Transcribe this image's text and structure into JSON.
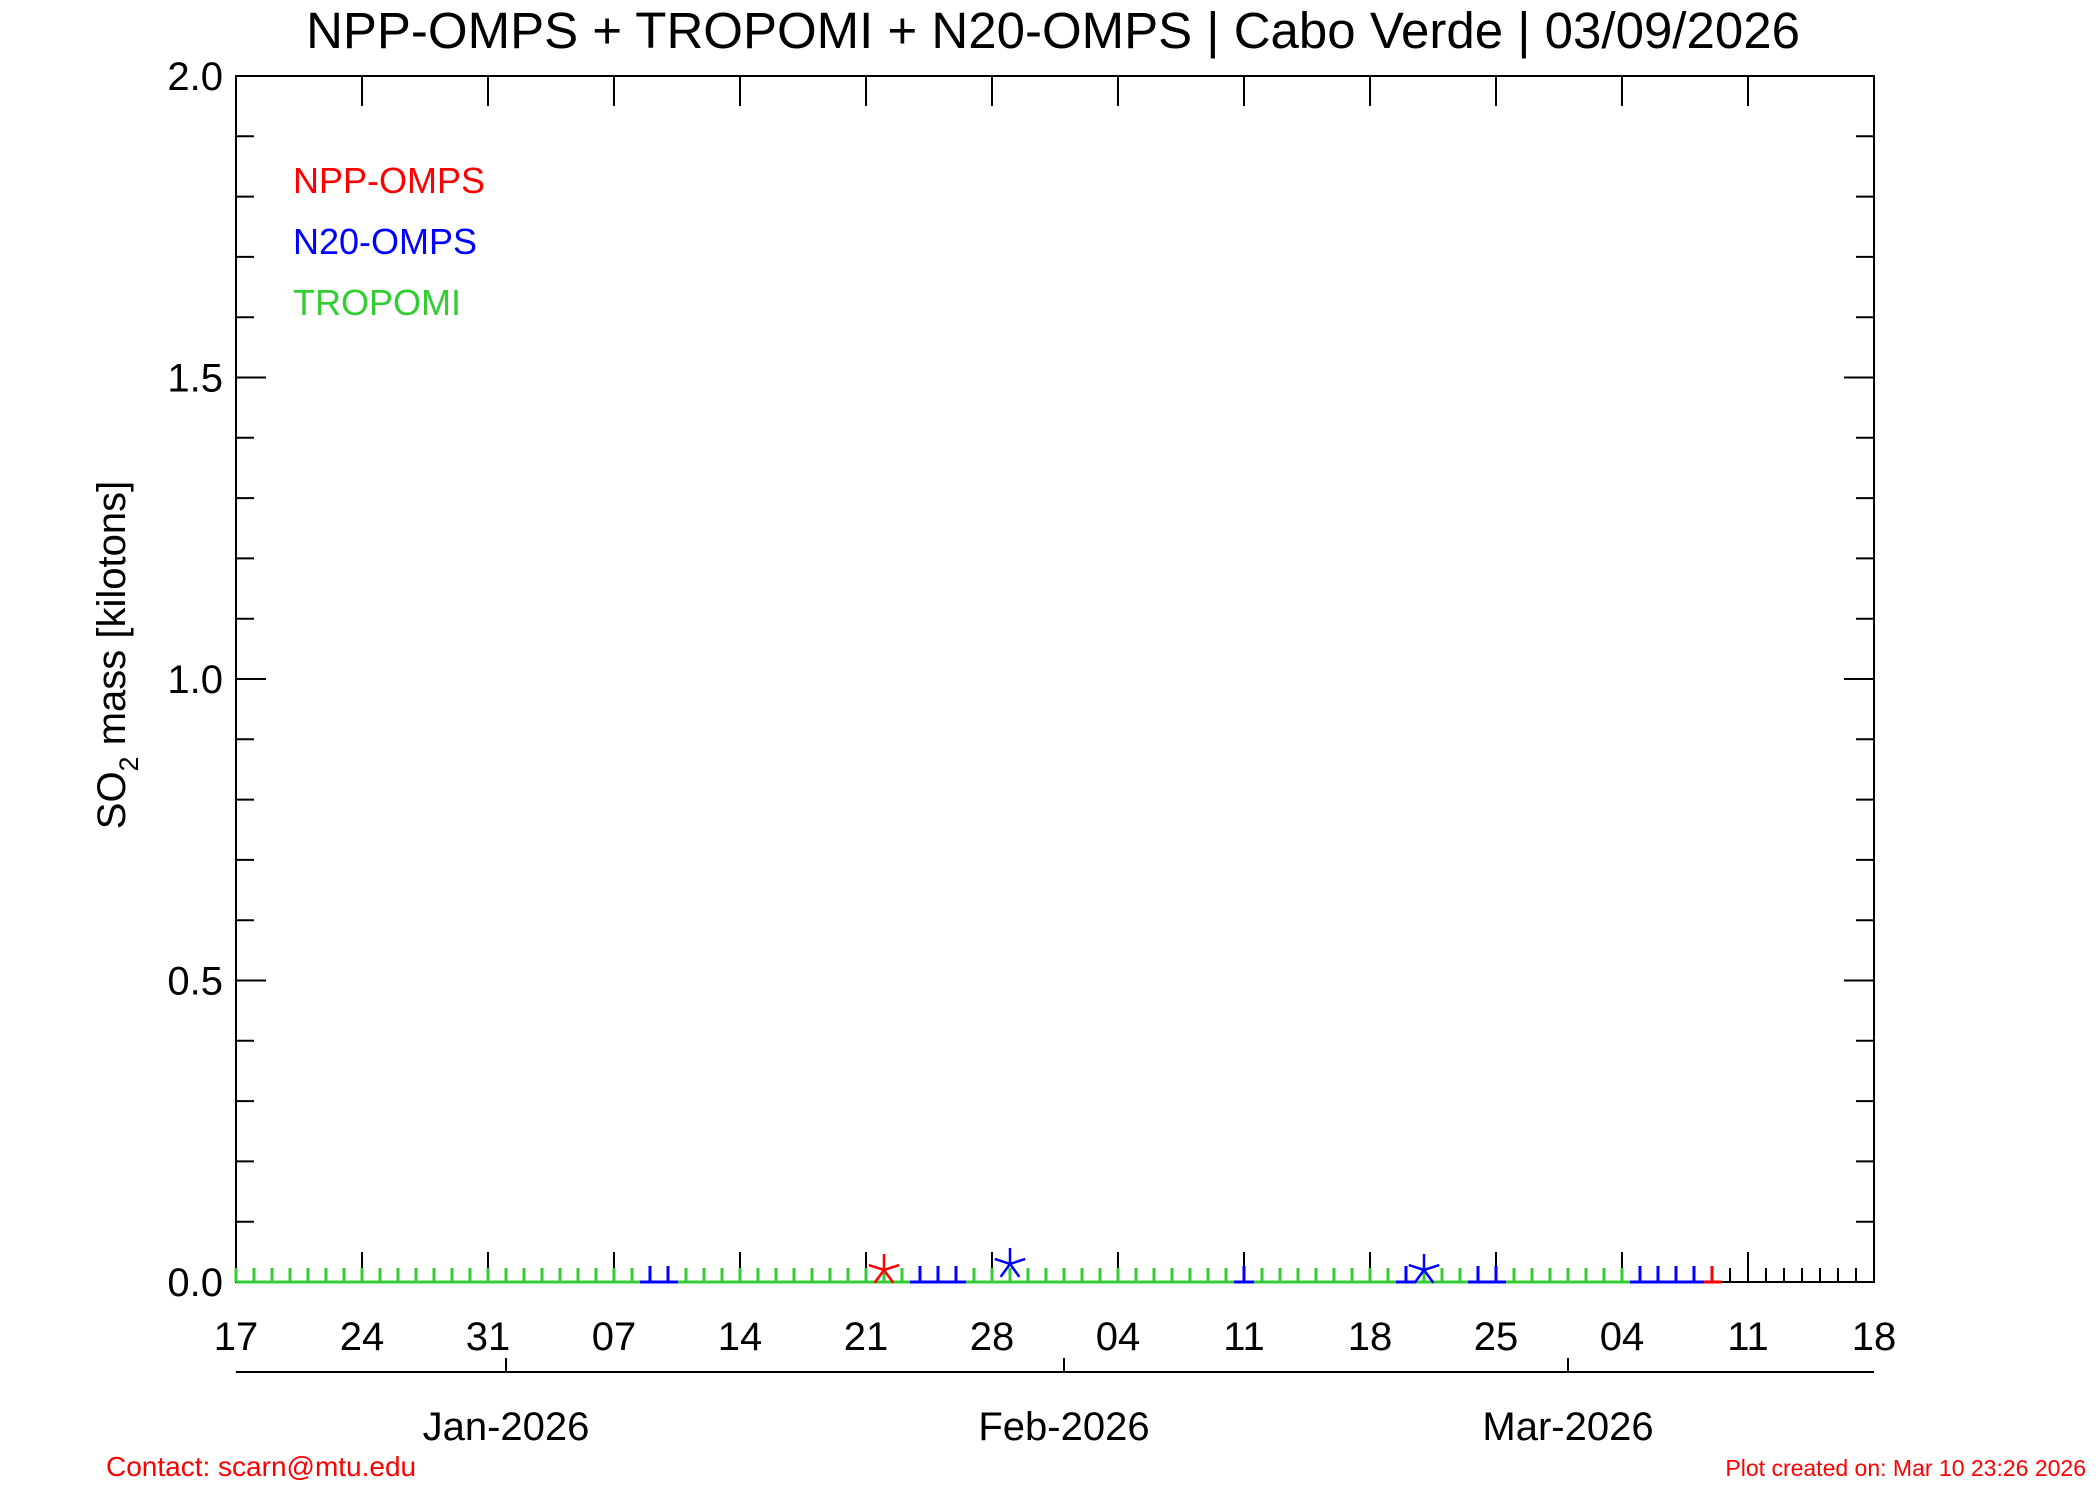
{
  "chart_data": {
    "type": "scatter",
    "title": "NPP-OMPS + TROPOMI + N20-OMPS | Cabo Verde | 03/09/2026",
    "ylabel_main": "SO",
    "ylabel_sub": "2",
    "ylabel_rest": " mass [kilotons]",
    "ylim": [
      0,
      2.0
    ],
    "y_ticks": [
      {
        "value": 0.0,
        "label": "0.0"
      },
      {
        "value": 0.5,
        "label": "0.5"
      },
      {
        "value": 1.0,
        "label": "1.0"
      },
      {
        "value": 1.5,
        "label": "1.5"
      },
      {
        "value": 2.0,
        "label": "2.0"
      }
    ],
    "xlim": [
      "2025-12-17",
      "2026-03-18"
    ],
    "x_ticks": [
      {
        "date": "2025-12-17",
        "label": "17"
      },
      {
        "date": "2025-12-24",
        "label": "24"
      },
      {
        "date": "2025-12-31",
        "label": "31"
      },
      {
        "date": "2026-01-07",
        "label": "07"
      },
      {
        "date": "2026-01-14",
        "label": "14"
      },
      {
        "date": "2026-01-21",
        "label": "21"
      },
      {
        "date": "2026-01-28",
        "label": "28"
      },
      {
        "date": "2026-02-04",
        "label": "04"
      },
      {
        "date": "2026-02-11",
        "label": "11"
      },
      {
        "date": "2026-02-18",
        "label": "18"
      },
      {
        "date": "2026-02-25",
        "label": "25"
      },
      {
        "date": "2026-03-04",
        "label": "04"
      },
      {
        "date": "2026-03-11",
        "label": "11"
      },
      {
        "date": "2026-03-18",
        "label": "18"
      }
    ],
    "month_axis": [
      {
        "date": "2026-01-01",
        "label": "Jan-2026"
      },
      {
        "date": "2026-02-01",
        "label": "Feb-2026"
      },
      {
        "date": "2026-03-01",
        "label": "Mar-2026"
      }
    ],
    "legend_position": "top-left",
    "series": [
      {
        "name": "NPP-OMPS",
        "color": "#ff0000",
        "points": [
          {
            "date": "2026-01-22",
            "value": 0.01
          },
          {
            "date": "2026-03-09",
            "value": 0.0
          }
        ]
      },
      {
        "name": "N20-OMPS",
        "color": "#0000ff",
        "points": [
          {
            "date": "2026-01-09",
            "value": 0.0
          },
          {
            "date": "2026-01-10",
            "value": 0.0
          },
          {
            "date": "2026-01-24",
            "value": 0.0
          },
          {
            "date": "2026-01-25",
            "value": 0.0
          },
          {
            "date": "2026-01-26",
            "value": 0.0
          },
          {
            "date": "2026-01-29",
            "value": 0.02
          },
          {
            "date": "2026-02-11",
            "value": 0.0
          },
          {
            "date": "2026-02-20",
            "value": 0.0
          },
          {
            "date": "2026-02-21",
            "value": 0.01
          },
          {
            "date": "2026-02-24",
            "value": 0.0
          },
          {
            "date": "2026-02-25",
            "value": 0.0
          },
          {
            "date": "2026-03-05",
            "value": 0.0
          },
          {
            "date": "2026-03-06",
            "value": 0.0
          },
          {
            "date": "2026-03-07",
            "value": 0.0
          },
          {
            "date": "2026-03-08",
            "value": 0.0
          }
        ]
      },
      {
        "name": "TROPOMI",
        "color": "#33cc33",
        "range_start": "2025-12-17",
        "range_end": "2026-03-08",
        "value": 0.0
      }
    ]
  },
  "footer": {
    "contact": "Contact: scarn@mtu.edu",
    "created": "Plot created on: Mar 10 23:26 2026"
  }
}
